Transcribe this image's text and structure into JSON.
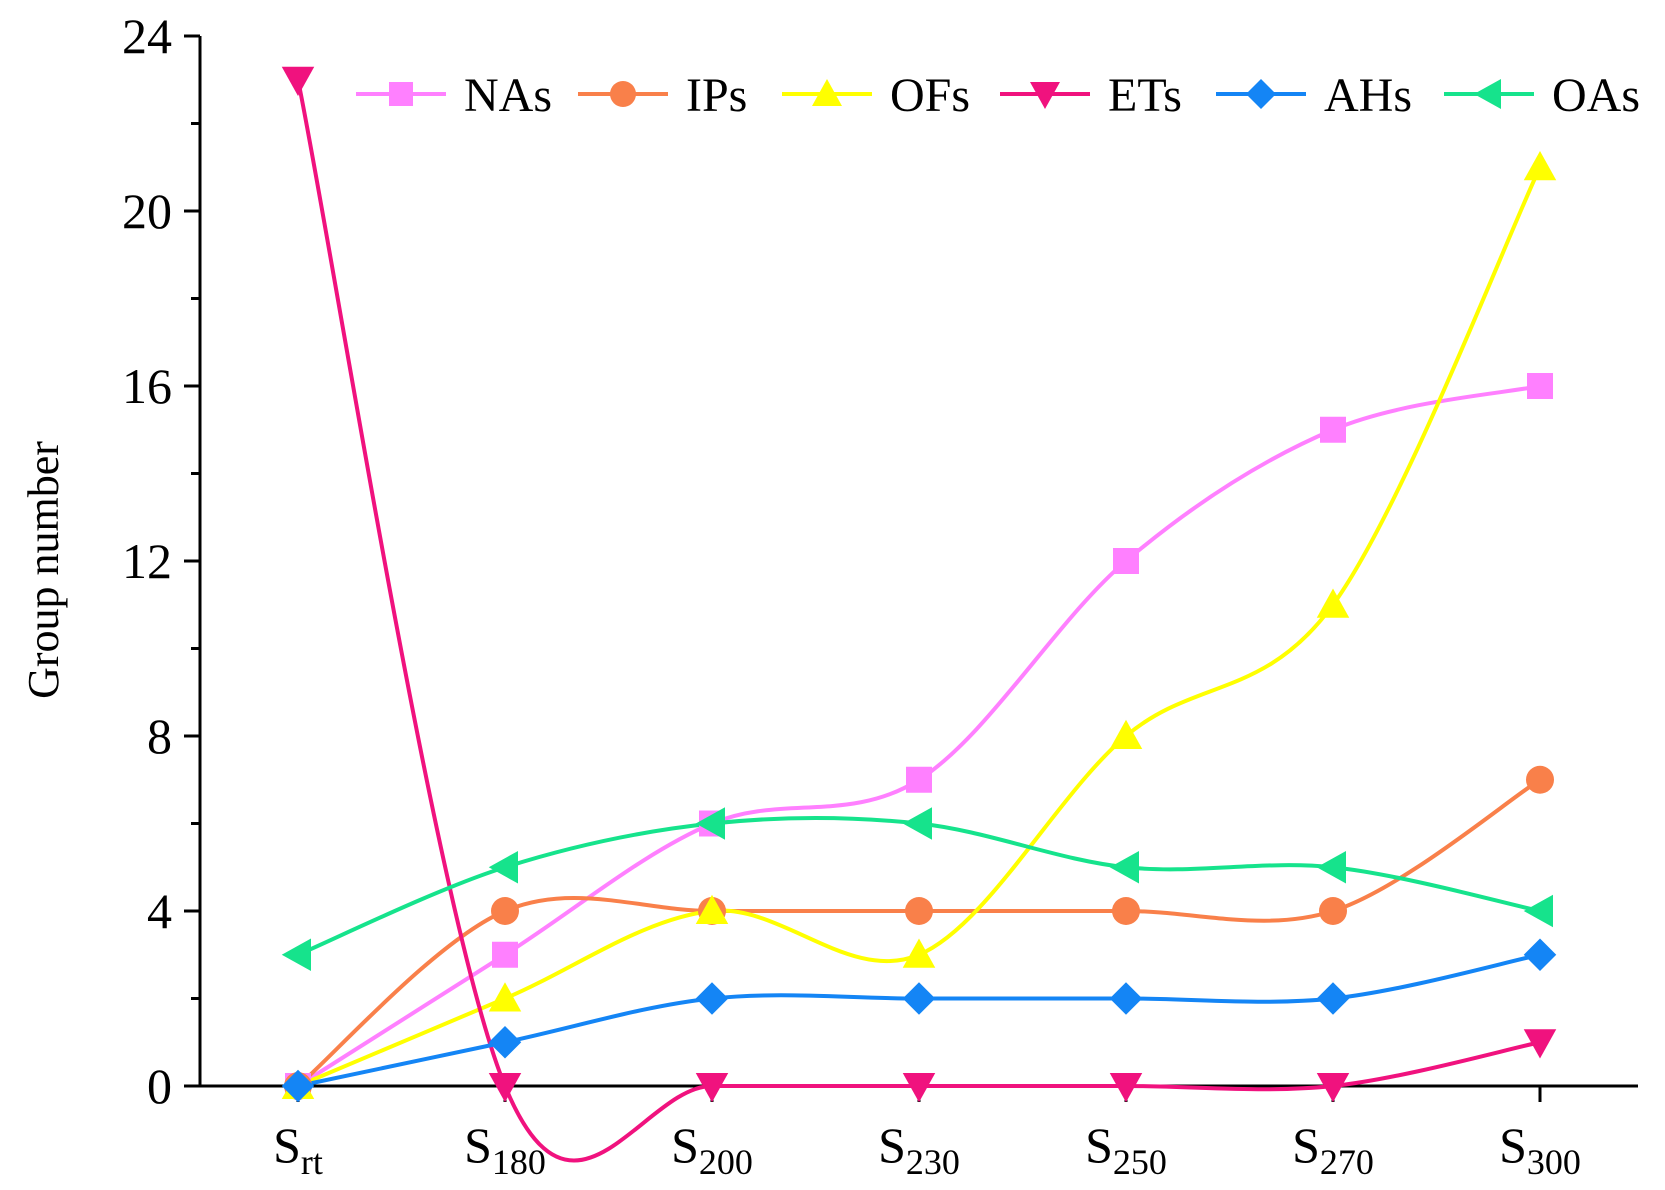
{
  "chart_data": {
    "type": "line",
    "ylabel": "Group number",
    "ylim": [
      0,
      24
    ],
    "yticks": [
      0,
      4,
      8,
      12,
      16,
      20,
      24
    ],
    "categories": [
      {
        "base": "S",
        "sub": "rt"
      },
      {
        "base": "S",
        "sub": "180"
      },
      {
        "base": "S",
        "sub": "200"
      },
      {
        "base": "S",
        "sub": "230"
      },
      {
        "base": "S",
        "sub": "250"
      },
      {
        "base": "S",
        "sub": "270"
      },
      {
        "base": "S",
        "sub": "300"
      }
    ],
    "legend": "top",
    "grid": false,
    "series": [
      {
        "name": "NAs",
        "color": "#ff80ff",
        "marker": "square",
        "values": [
          0,
          3,
          6,
          7,
          12,
          15,
          16
        ]
      },
      {
        "name": "IPs",
        "color": "#f9804a",
        "marker": "circle",
        "values": [
          0,
          4,
          4,
          4,
          4,
          4,
          7
        ]
      },
      {
        "name": "OFs",
        "color": "#ffff00",
        "marker": "triangle-up",
        "values": [
          0,
          2,
          4,
          3,
          8,
          11,
          21
        ]
      },
      {
        "name": "ETs",
        "color": "#f0127e",
        "marker": "triangle-down",
        "values": [
          23,
          0,
          0,
          0,
          0,
          0,
          1
        ]
      },
      {
        "name": "AHs",
        "color": "#1485f5",
        "marker": "diamond",
        "values": [
          0,
          1,
          2,
          2,
          2,
          2,
          3
        ]
      },
      {
        "name": "OAs",
        "color": "#16e38c",
        "marker": "triangle-left",
        "values": [
          3,
          5,
          6,
          6,
          5,
          5,
          4
        ]
      }
    ]
  }
}
